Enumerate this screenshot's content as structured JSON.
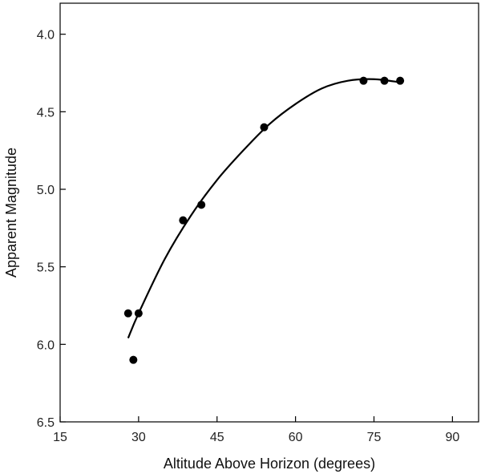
{
  "chart_data": {
    "type": "scatter",
    "title": "",
    "xlabel": "Altitude Above Horizon (degrees)",
    "ylabel": "Apparent Magnitude",
    "xlim": [
      15,
      95
    ],
    "ylim": [
      3.8,
      6.5
    ],
    "y_inverted": true,
    "grid": false,
    "x_ticks": [
      15,
      30,
      45,
      60,
      75,
      90
    ],
    "x_tick_labels": [
      "15",
      "30",
      "45",
      "60",
      "75",
      "90"
    ],
    "y_ticks": [
      4.0,
      4.5,
      5.0,
      5.5,
      6.0,
      6.5
    ],
    "y_tick_labels": [
      "4.0",
      "4.5",
      "5.0",
      "5.5",
      "6.0",
      "6.5"
    ],
    "points": [
      {
        "x": 28,
        "y": 5.8
      },
      {
        "x": 29,
        "y": 6.1
      },
      {
        "x": 30,
        "y": 5.8
      },
      {
        "x": 38.5,
        "y": 5.2
      },
      {
        "x": 42,
        "y": 5.1
      },
      {
        "x": 54,
        "y": 4.6
      },
      {
        "x": 73,
        "y": 4.3
      },
      {
        "x": 77,
        "y": 4.3
      },
      {
        "x": 80,
        "y": 4.3
      }
    ],
    "fit_curve": {
      "type": "line",
      "x": [
        28,
        30,
        35,
        40,
        45,
        50,
        55,
        60,
        65,
        70,
        75,
        80
      ],
      "y": [
        5.96,
        5.8,
        5.45,
        5.17,
        4.94,
        4.75,
        4.58,
        4.45,
        4.35,
        4.3,
        4.29,
        4.31
      ]
    },
    "colors": {
      "marker": "#000000",
      "curve": "#000000",
      "axis": "#000000"
    }
  }
}
